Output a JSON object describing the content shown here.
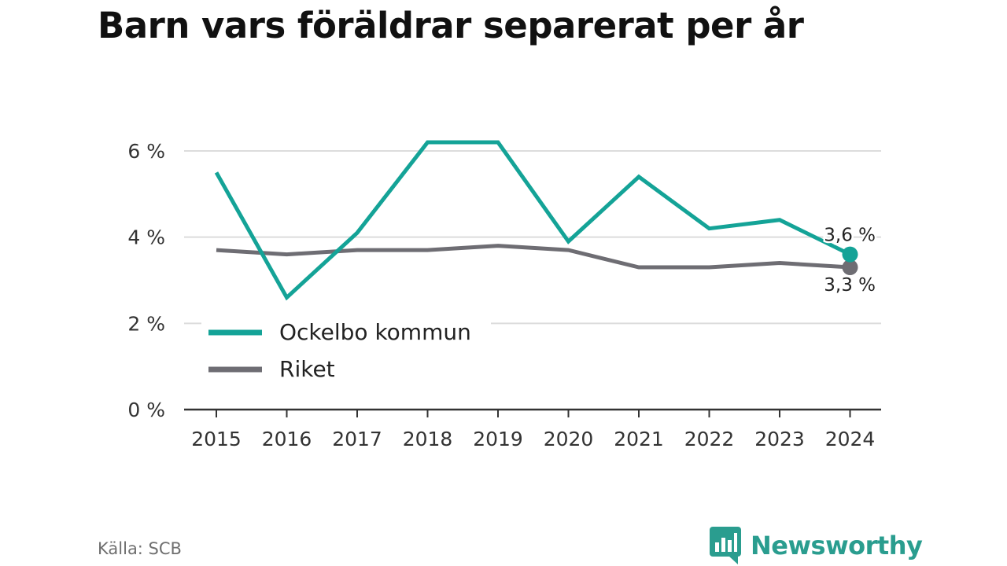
{
  "title": "Barn vars föräldrar separerat per år",
  "source": "Källa: SCB",
  "brand": {
    "name": "Newsworthy",
    "icon": "newsworthy-logo-icon",
    "color": "#2a9d8f"
  },
  "chart_data": {
    "type": "line",
    "title": "Barn vars föräldrar separerat per år",
    "x": [
      "2015",
      "2016",
      "2017",
      "2018",
      "2019",
      "2020",
      "2021",
      "2022",
      "2023",
      "2024"
    ],
    "ylim": [
      0,
      7
    ],
    "yticks": [
      0,
      2,
      4,
      6
    ],
    "ytick_labels": [
      "0 %",
      "2 %",
      "4 %",
      "6 %"
    ],
    "grid": true,
    "legend_position": "bottom-left",
    "series": [
      {
        "name": "Ockelbo kommun",
        "color": "#14a397",
        "values": [
          5.5,
          2.6,
          4.1,
          6.2,
          6.2,
          3.9,
          5.4,
          4.2,
          4.4,
          3.6
        ],
        "end_label": "3,6 %"
      },
      {
        "name": "Riket",
        "color": "#6e6d73",
        "values": [
          3.7,
          3.6,
          3.7,
          3.7,
          3.8,
          3.7,
          3.3,
          3.3,
          3.4,
          3.3
        ],
        "end_label": "3,3 %"
      }
    ]
  }
}
